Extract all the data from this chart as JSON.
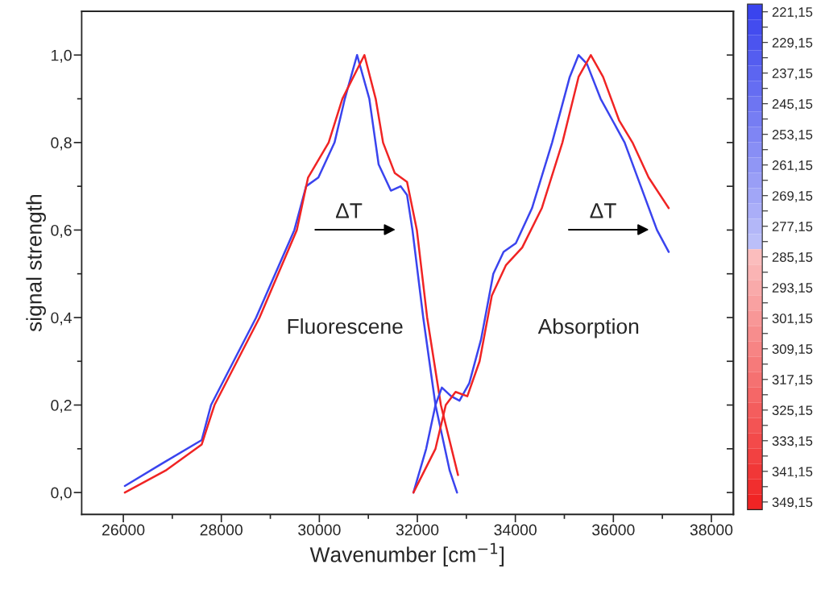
{
  "chart_data": {
    "type": "line",
    "xlabel": "Wavenumber [cm$^{−1}$]",
    "ylabel": "signal strength",
    "xlim": [
      25150,
      38450
    ],
    "ylim": [
      -0.05,
      1.1
    ],
    "xticks": [
      {
        "value": 26000,
        "label": "26000"
      },
      {
        "value": 27000,
        "label": null
      },
      {
        "value": 28000,
        "label": "28000"
      },
      {
        "value": 29000,
        "label": null
      },
      {
        "value": 30000,
        "label": "30000"
      },
      {
        "value": 31000,
        "label": null
      },
      {
        "value": 32000,
        "label": "32000"
      },
      {
        "value": 33000,
        "label": null
      },
      {
        "value": 34000,
        "label": "34000"
      },
      {
        "value": 35000,
        "label": null
      },
      {
        "value": 36000,
        "label": "36000"
      },
      {
        "value": 37000,
        "label": null
      },
      {
        "value": 38000,
        "label": "38000"
      }
    ],
    "yticks": [
      {
        "value": 0,
        "label": "0,0"
      },
      {
        "value": 0.1,
        "label": null
      },
      {
        "value": 0.2,
        "label": "0,2"
      },
      {
        "value": 0.3,
        "label": null
      },
      {
        "value": 0.4,
        "label": "0,4"
      },
      {
        "value": 0.5,
        "label": null
      },
      {
        "value": 0.6,
        "label": "0,6"
      },
      {
        "value": 0.7,
        "label": null
      },
      {
        "value": 0.8,
        "label": "0,8"
      },
      {
        "value": 0.9,
        "label": null
      },
      {
        "value": 1.0,
        "label": "1,0"
      }
    ],
    "grid": false,
    "legend": false,
    "clim": [
      351.15,
      219.15
    ],
    "cticks": [
      {
        "value": 221.15,
        "label": "221,15"
      },
      {
        "value": 225.15,
        "label": null
      },
      {
        "value": 229.15,
        "label": "229,15"
      },
      {
        "value": 233.15,
        "label": null
      },
      {
        "value": 237.15,
        "label": "237,15"
      },
      {
        "value": 241.15,
        "label": null
      },
      {
        "value": 245.15,
        "label": "245,15"
      },
      {
        "value": 249.15,
        "label": null
      },
      {
        "value": 253.15,
        "label": "253,15"
      },
      {
        "value": 257.15,
        "label": null
      },
      {
        "value": 261.15,
        "label": "261,15"
      },
      {
        "value": 265.15,
        "label": null
      },
      {
        "value": 269.15,
        "label": "269,15"
      },
      {
        "value": 273.15,
        "label": null
      },
      {
        "value": 277.15,
        "label": "277,15"
      },
      {
        "value": 281.15,
        "label": null
      },
      {
        "value": 285.15,
        "label": "285,15"
      },
      {
        "value": 289.15,
        "label": null
      },
      {
        "value": 293.15,
        "label": "293,15"
      },
      {
        "value": 297.15,
        "label": null
      },
      {
        "value": 301.15,
        "label": "301,15"
      },
      {
        "value": 305.15,
        "label": null
      },
      {
        "value": 309.15,
        "label": "309,15"
      },
      {
        "value": 313.15,
        "label": null
      },
      {
        "value": 317.15,
        "label": "317,15"
      },
      {
        "value": 321.15,
        "label": null
      },
      {
        "value": 325.15,
        "label": "325,15"
      },
      {
        "value": 329.15,
        "label": null
      },
      {
        "value": 333.15,
        "label": "333,15"
      },
      {
        "value": 337.15,
        "label": null
      },
      {
        "value": 341.15,
        "label": "341,15"
      },
      {
        "value": 345.15,
        "label": null
      },
      {
        "value": 349.15,
        "label": "349,15"
      }
    ],
    "annotations": [
      "ΔT",
      "ΔT",
      "Fluorescene",
      "Absorption"
    ],
    "series": [
      {
        "color": "#3a44ee",
        "x": [
          26030,
          26770,
          27600,
          27790,
          28710,
          29490,
          29730,
          29980,
          30310,
          30520,
          30770,
          31020,
          31210,
          31460,
          31660,
          31790,
          31900,
          32120,
          32370,
          32660,
          32810
        ],
        "values": [
          0.015,
          0.065,
          0.12,
          0.2,
          0.4,
          0.6,
          0.7,
          0.72,
          0.8,
          0.9,
          1.0,
          0.9,
          0.75,
          0.69,
          0.7,
          0.68,
          0.6,
          0.4,
          0.2,
          0.05,
          0.0
        ]
      },
      {
        "color": "#f02424",
        "x": [
          26030,
          26860,
          27600,
          27860,
          28780,
          29540,
          29770,
          29980,
          30190,
          30470,
          30920,
          31150,
          31300,
          31540,
          31790,
          31990,
          32200,
          32480,
          32830
        ],
        "values": [
          0.0,
          0.05,
          0.11,
          0.2,
          0.4,
          0.6,
          0.72,
          0.76,
          0.8,
          0.9,
          1.0,
          0.9,
          0.8,
          0.73,
          0.71,
          0.6,
          0.4,
          0.2,
          0.04
        ]
      },
      {
        "color": "#3a44ee",
        "x": [
          31920,
          32180,
          32370,
          32500,
          32690,
          32860,
          33060,
          33300,
          33550,
          33760,
          34010,
          34340,
          34750,
          35110,
          35290,
          35460,
          35740,
          36230,
          36560,
          36890,
          37130
        ],
        "values": [
          0.0,
          0.1,
          0.2,
          0.24,
          0.22,
          0.21,
          0.25,
          0.35,
          0.5,
          0.55,
          0.57,
          0.65,
          0.8,
          0.95,
          1.0,
          0.98,
          0.9,
          0.8,
          0.7,
          0.6,
          0.55
        ]
      },
      {
        "color": "#f02424",
        "x": [
          31920,
          32370,
          32580,
          32780,
          33020,
          33270,
          33520,
          33810,
          34140,
          34540,
          34960,
          35290,
          35540,
          35790,
          36120,
          36390,
          36720,
          37130
        ],
        "values": [
          0.0,
          0.1,
          0.2,
          0.23,
          0.22,
          0.3,
          0.45,
          0.52,
          0.56,
          0.65,
          0.8,
          0.95,
          1.0,
          0.95,
          0.85,
          0.8,
          0.72,
          0.65
        ]
      }
    ]
  }
}
